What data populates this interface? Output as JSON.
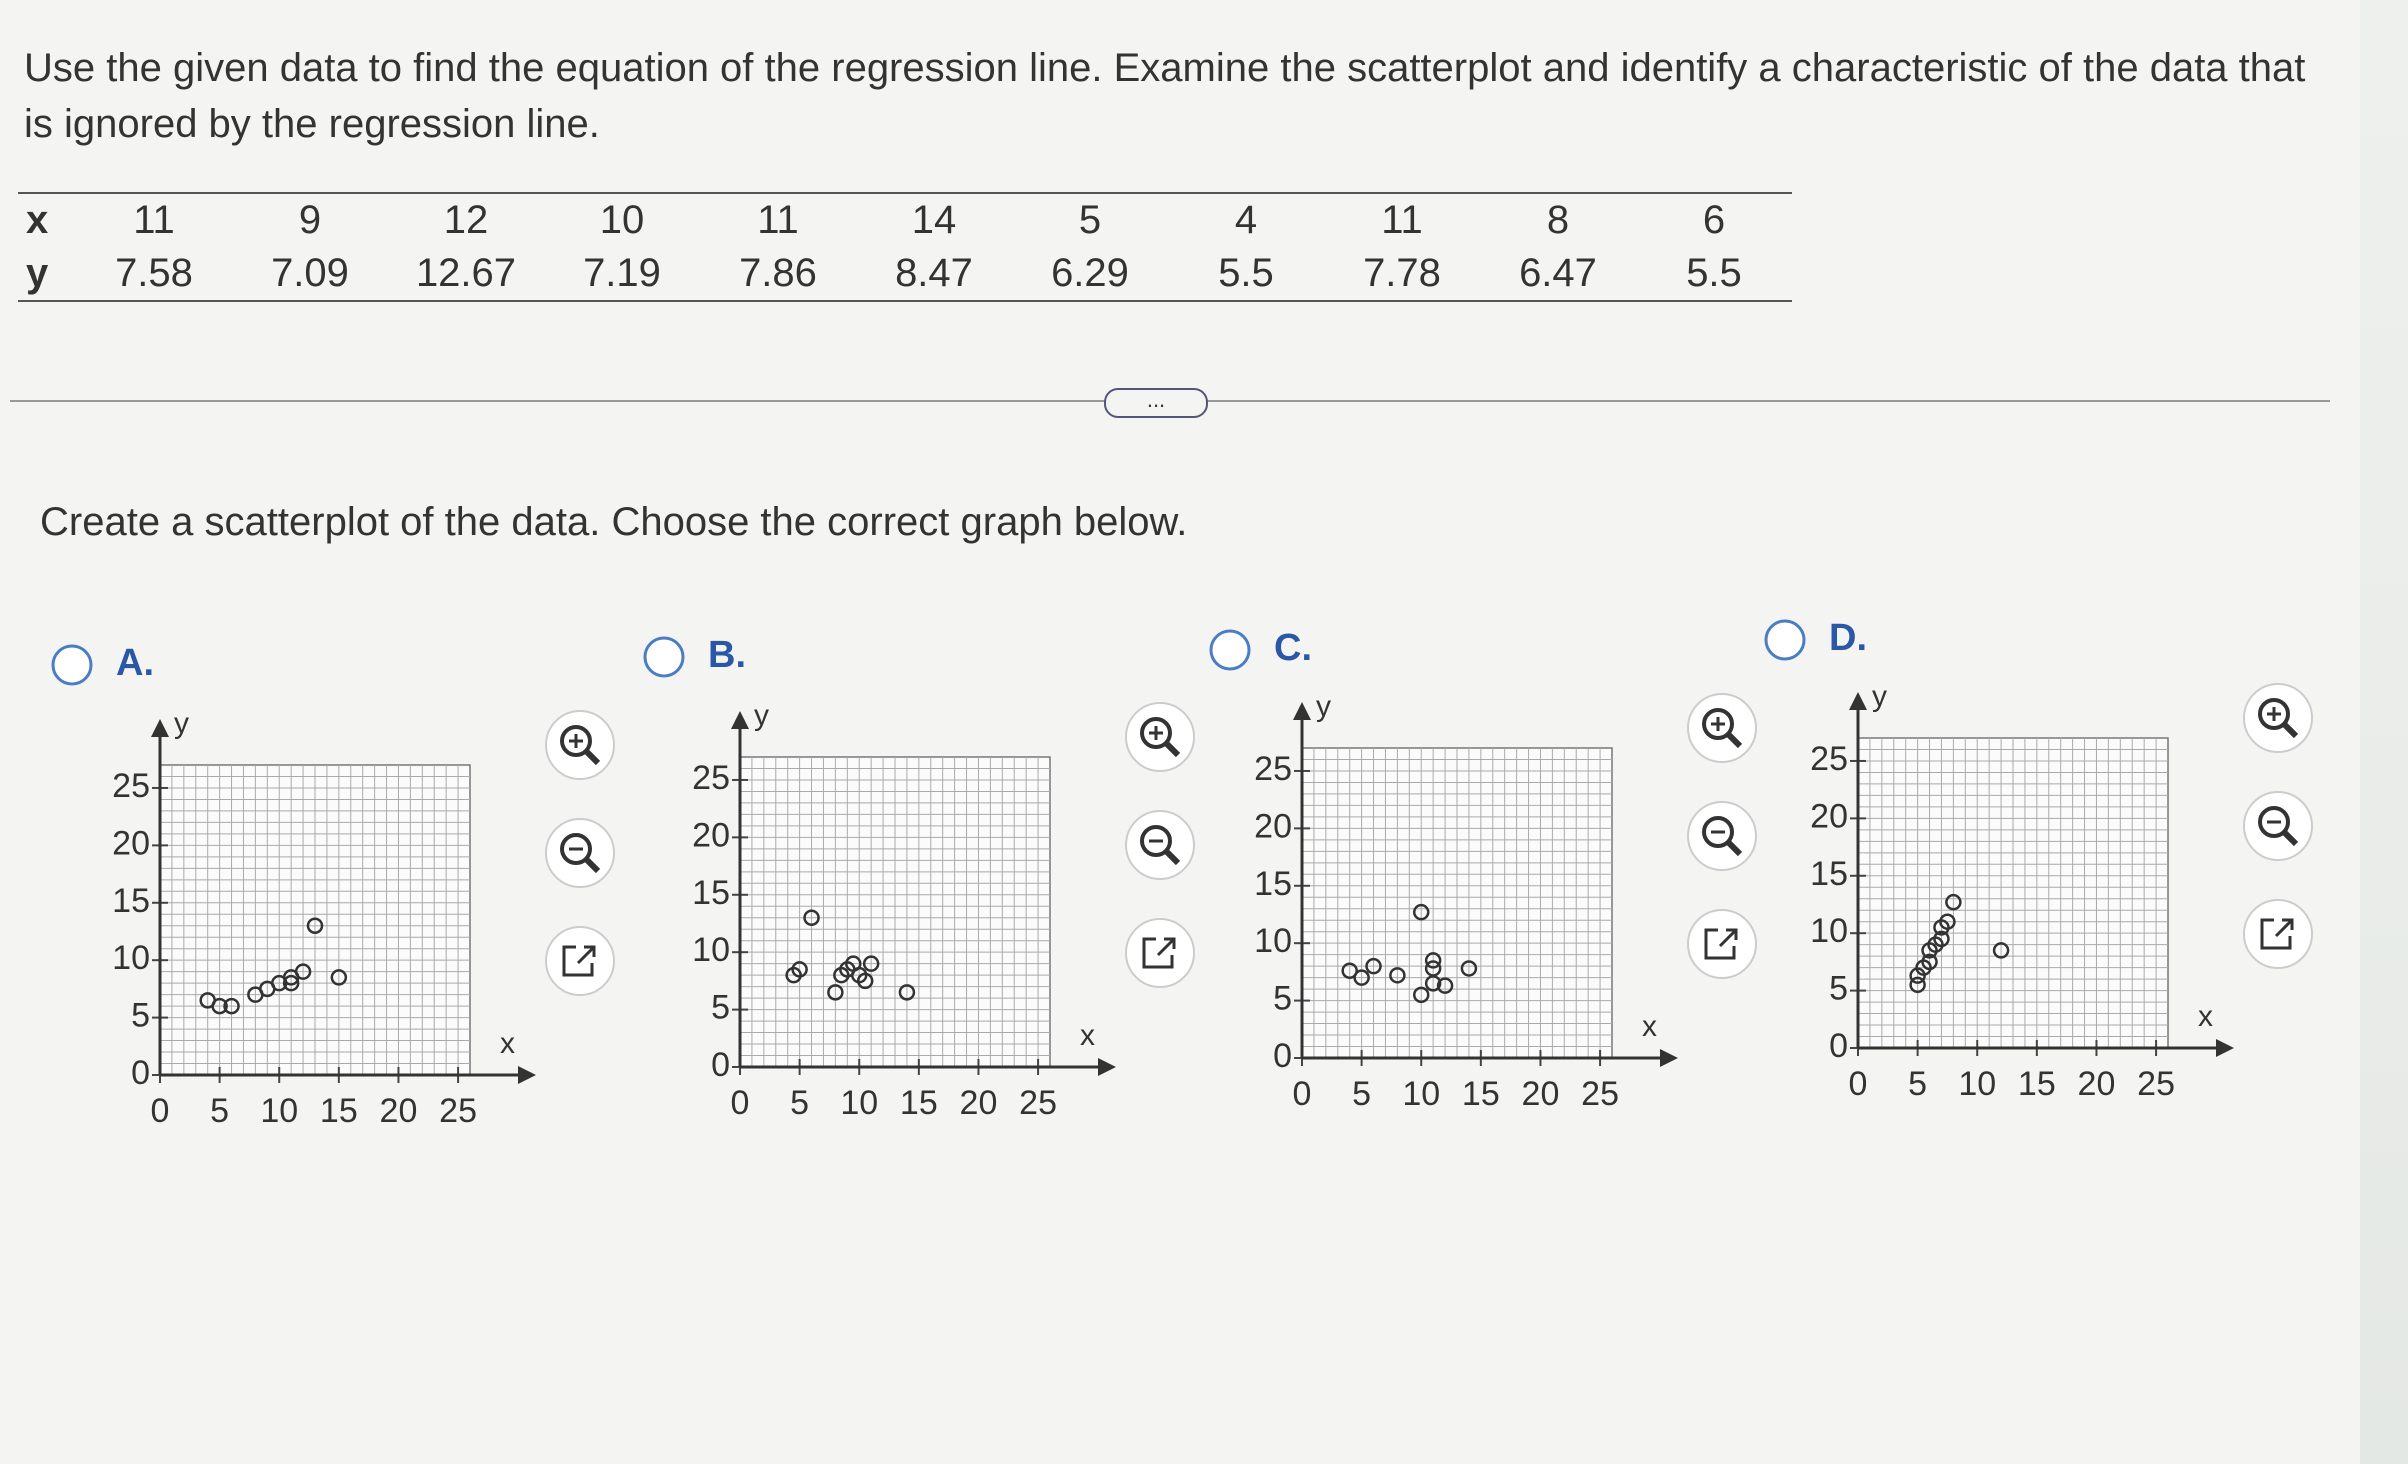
{
  "question": "Use the given data to find the equation of the regression line. Examine the scatterplot and identify a characteristic of the data that is ignored by the regression line.",
  "table": {
    "x_label": "x",
    "y_label": "y",
    "x": [
      11,
      9,
      12,
      10,
      11,
      14,
      5,
      4,
      11,
      8,
      6
    ],
    "y": [
      7.58,
      7.09,
      12.67,
      7.19,
      7.86,
      8.47,
      6.29,
      5.5,
      7.78,
      6.47,
      5.5
    ]
  },
  "more": "...",
  "prompt": "Create a scatterplot of the data. Choose the correct graph below.",
  "options": [
    {
      "letter": "A.",
      "chart": {
        "type": "scatter",
        "x_label": "x",
        "y_label": "y",
        "xlim": [
          0,
          26
        ],
        "ylim": [
          0,
          27
        ],
        "xticks": [
          0,
          5,
          10,
          15,
          20,
          25
        ],
        "yticks": [
          0,
          5,
          10,
          15,
          20,
          25
        ],
        "x": [
          4,
          5,
          6,
          8,
          9,
          10,
          11,
          11,
          12,
          13,
          15
        ],
        "y": [
          6.5,
          6,
          6,
          7,
          7.5,
          8,
          8.5,
          8,
          9,
          13,
          8.5
        ]
      }
    },
    {
      "letter": "B.",
      "chart": {
        "type": "scatter",
        "x_label": "x",
        "y_label": "y",
        "xlim": [
          0,
          26
        ],
        "ylim": [
          0,
          27
        ],
        "xticks": [
          0,
          5,
          10,
          15,
          20,
          25
        ],
        "yticks": [
          0,
          5,
          10,
          15,
          20,
          25
        ],
        "x": [
          4.5,
          5,
          6,
          8,
          9,
          9.5,
          10,
          10.5,
          11,
          14,
          8.5
        ],
        "y": [
          8,
          8.5,
          13,
          6.5,
          8.5,
          9,
          8,
          7.5,
          9,
          6.5,
          8
        ]
      }
    },
    {
      "letter": "C.",
      "chart": {
        "type": "scatter",
        "x_label": "x",
        "y_label": "y",
        "xlim": [
          0,
          26
        ],
        "ylim": [
          0,
          27
        ],
        "xticks": [
          0,
          5,
          10,
          15,
          20,
          25
        ],
        "yticks": [
          0,
          5,
          10,
          15,
          20,
          25
        ],
        "x": [
          4,
          5,
          6,
          8,
          10,
          11,
          11,
          11,
          12,
          14,
          10
        ],
        "y": [
          7.6,
          7,
          8,
          7.2,
          12.7,
          8.5,
          7.8,
          6.5,
          6.3,
          7.8,
          5.5
        ]
      }
    },
    {
      "letter": "D.",
      "chart": {
        "type": "scatter",
        "x_label": "x",
        "y_label": "y",
        "xlim": [
          0,
          26
        ],
        "ylim": [
          0,
          27
        ],
        "xticks": [
          0,
          5,
          10,
          15,
          20,
          25
        ],
        "yticks": [
          0,
          5,
          10,
          15,
          20,
          25
        ],
        "x": [
          5,
          5,
          5.5,
          6,
          6,
          6.5,
          7,
          7,
          7.5,
          8,
          12
        ],
        "y": [
          5.5,
          6.3,
          7,
          7.5,
          8.5,
          9,
          9.5,
          10.5,
          11,
          12.7,
          8.5
        ]
      }
    }
  ]
}
